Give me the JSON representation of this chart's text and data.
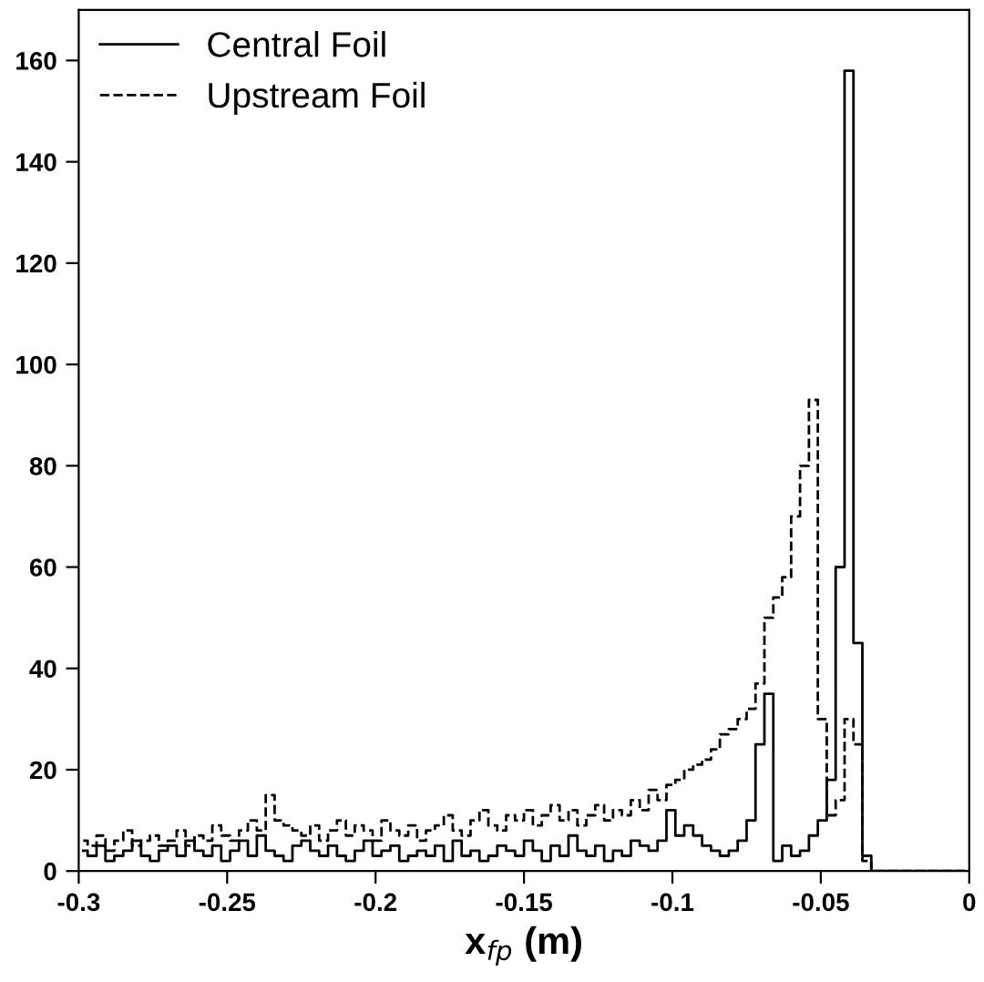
{
  "chart_data": {
    "type": "step",
    "xlabel": "x$_{fp}$ (m)",
    "x": [
      -0.2985,
      -0.2955,
      -0.2925,
      -0.2895,
      -0.2865,
      -0.2835,
      -0.2805,
      -0.2775,
      -0.2745,
      -0.2715,
      -0.2685,
      -0.2655,
      -0.2625,
      -0.2595,
      -0.2565,
      -0.2535,
      -0.2505,
      -0.2475,
      -0.2445,
      -0.2415,
      -0.2385,
      -0.2355,
      -0.2325,
      -0.2295,
      -0.2265,
      -0.2235,
      -0.2205,
      -0.2175,
      -0.2145,
      -0.2115,
      -0.2085,
      -0.2055,
      -0.2025,
      -0.1995,
      -0.1965,
      -0.1935,
      -0.1905,
      -0.1875,
      -0.1845,
      -0.1815,
      -0.1785,
      -0.1755,
      -0.1725,
      -0.1695,
      -0.1665,
      -0.1635,
      -0.1605,
      -0.1575,
      -0.1545,
      -0.1515,
      -0.1485,
      -0.1455,
      -0.1425,
      -0.1395,
      -0.1365,
      -0.1335,
      -0.1305,
      -0.1275,
      -0.1245,
      -0.1215,
      -0.1185,
      -0.1155,
      -0.1125,
      -0.1095,
      -0.1065,
      -0.1035,
      -0.1005,
      -0.0975,
      -0.0945,
      -0.0915,
      -0.0885,
      -0.0855,
      -0.0825,
      -0.0795,
      -0.0765,
      -0.0735,
      -0.0705,
      -0.0675,
      -0.0645,
      -0.0615,
      -0.0585,
      -0.0555,
      -0.0525,
      -0.0495,
      -0.0465,
      -0.0435,
      -0.0405,
      -0.0375,
      -0.0345,
      -0.0315,
      -0.0285,
      -0.0255,
      -0.0225,
      -0.0195,
      -0.0165,
      -0.0135,
      -0.0105,
      -0.0075,
      -0.0045,
      -0.0015
    ],
    "series": [
      {
        "name": "Central Foil",
        "color": "#000000",
        "line_style": "solid",
        "values": [
          4,
          3,
          5,
          2,
          3,
          4,
          6,
          3,
          2,
          4,
          5,
          3,
          6,
          4,
          3,
          5,
          2,
          4,
          6,
          3,
          7,
          4,
          3,
          2,
          5,
          6,
          4,
          3,
          5,
          3,
          2,
          4,
          6,
          3,
          4,
          5,
          2,
          3,
          4,
          3,
          5,
          2,
          6,
          3,
          4,
          2,
          3,
          5,
          4,
          3,
          6,
          4,
          2,
          5,
          3,
          7,
          4,
          3,
          5,
          2,
          4,
          3,
          6,
          5,
          4,
          6,
          12,
          7,
          9,
          7,
          5,
          4,
          3,
          4,
          6,
          10,
          25,
          35,
          2,
          5,
          3,
          4,
          7,
          10,
          18,
          60,
          158,
          45,
          3,
          0,
          0,
          0,
          0,
          0,
          0,
          0,
          0,
          0,
          0,
          0
        ]
      },
      {
        "name": "Upstream Foil",
        "color": "#000000",
        "line_style": "dashed",
        "values": [
          6,
          5,
          7,
          4,
          6,
          8,
          5,
          6,
          7,
          5,
          6,
          8,
          5,
          7,
          6,
          9,
          7,
          6,
          8,
          10,
          8,
          15,
          10,
          9,
          8,
          7,
          9,
          6,
          8,
          10,
          7,
          9,
          8,
          6,
          10,
          8,
          7,
          9,
          6,
          8,
          9,
          11,
          8,
          7,
          10,
          12,
          9,
          8,
          11,
          10,
          12,
          9,
          11,
          13,
          10,
          12,
          9,
          11,
          13,
          10,
          12,
          11,
          14,
          12,
          16,
          14,
          17,
          18,
          20,
          21,
          22,
          24,
          27,
          28,
          30,
          32,
          37,
          50,
          54,
          58,
          70,
          80,
          93,
          30,
          11,
          14,
          30,
          25,
          2,
          0,
          0,
          0,
          0,
          0,
          0,
          0,
          0,
          0,
          0,
          0
        ]
      }
    ],
    "xlim": [
      -0.3,
      0
    ],
    "ylim": [
      0,
      170
    ],
    "xticks": [
      -0.3,
      -0.25,
      -0.2,
      -0.15,
      -0.1,
      -0.05,
      0
    ],
    "yticks": [
      0,
      20,
      40,
      60,
      80,
      100,
      120,
      140,
      160
    ],
    "grid": false,
    "legend": "top left"
  }
}
